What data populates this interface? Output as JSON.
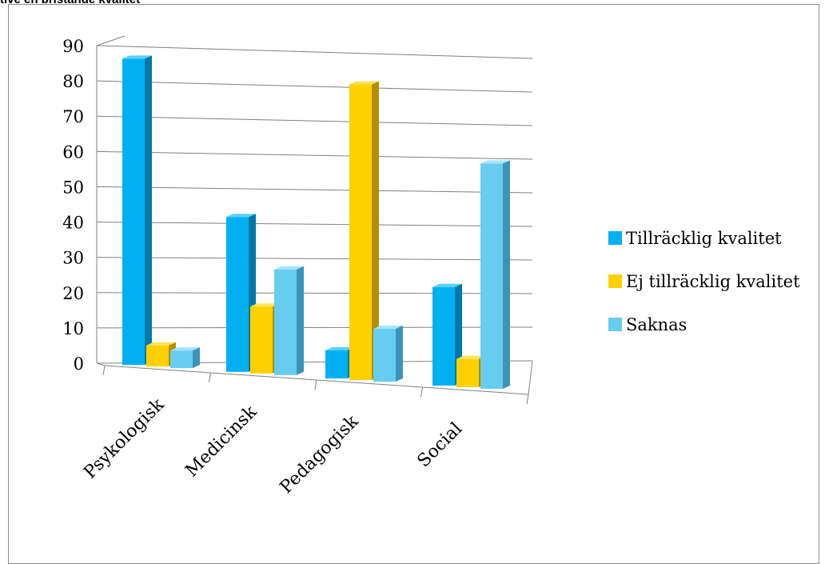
{
  "caption": "tive en bristande kvalitet",
  "colors": {
    "series": [
      "#00b0f0",
      "#ffd000",
      "#66ccf0"
    ],
    "side": [
      "#0079a8",
      "#b08f00",
      "#3c93b8"
    ],
    "top": [
      "#58d0ff",
      "#ffe258",
      "#a6e4fa"
    ],
    "grid": "#808080"
  },
  "chart_data": {
    "type": "bar",
    "categories": [
      "Psykologisk",
      "Medicinsk",
      "Pedagogisk",
      "Social"
    ],
    "series": [
      {
        "name": "Tillräcklig kvalitet",
        "values": [
          87,
          44,
          8,
          28
        ]
      },
      {
        "name": "Ej tillräcklig kvalitet",
        "values": [
          6,
          19,
          84,
          8
        ]
      },
      {
        "name": "Saknas",
        "values": [
          5,
          30,
          15,
          64
        ]
      }
    ],
    "ylim": [
      0,
      90
    ],
    "yticks": [
      0,
      10,
      20,
      30,
      40,
      50,
      60,
      70,
      80,
      90
    ],
    "grid": true,
    "legend": "right",
    "xlabel": "",
    "ylabel": ""
  }
}
